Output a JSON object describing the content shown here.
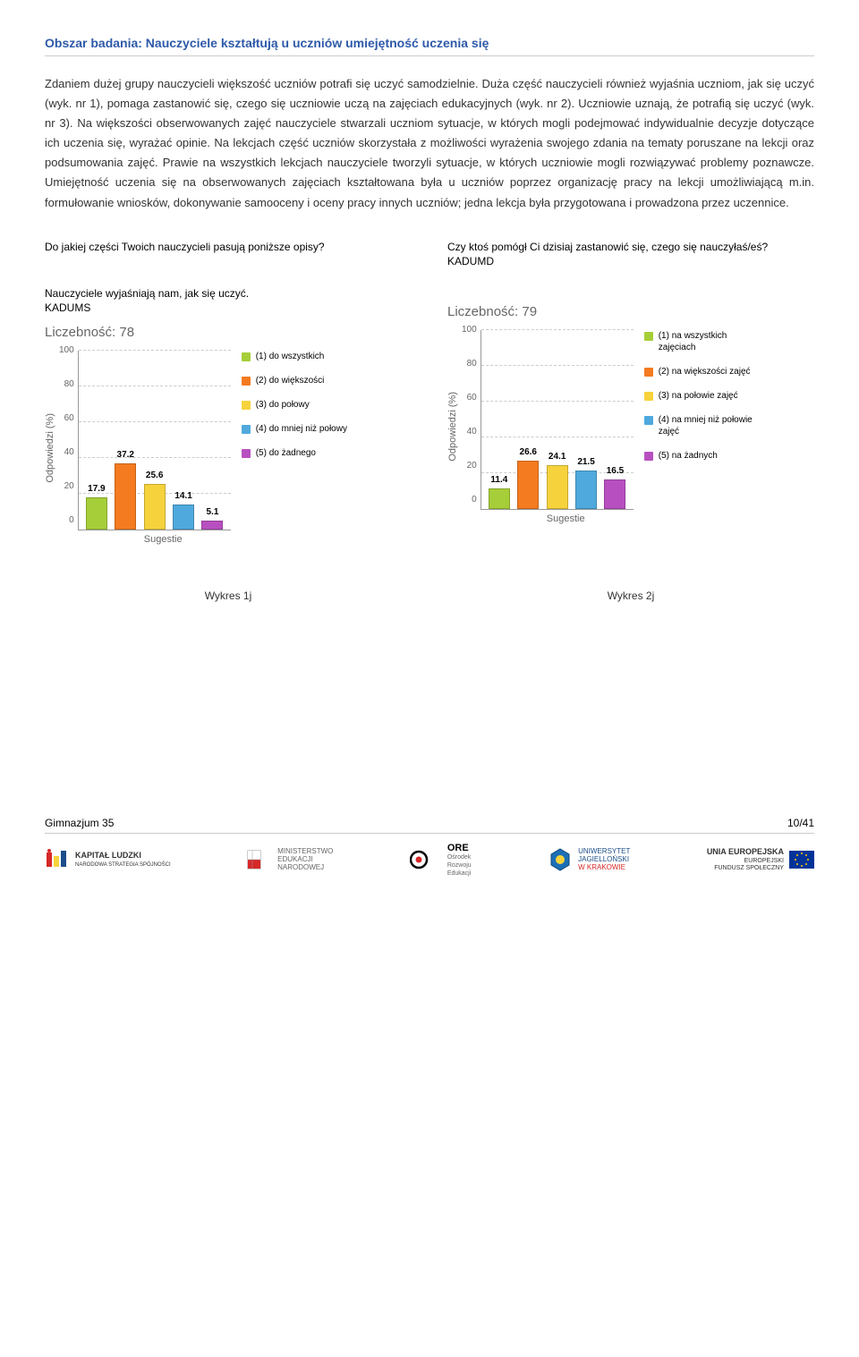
{
  "section_title": "Obszar badania: Nauczyciele kształtują u uczniów umiejętność uczenia się",
  "body_text": "Zdaniem dużej grupy nauczycieli większość uczniów potrafi się uczyć samodzielnie. Duża część nauczycieli również wyjaśnia uczniom, jak się uczyć (wyk. nr 1), pomaga zastanowić się, czego się uczniowie uczą na zajęciach edukacyjnych (wyk. nr 2). Uczniowie uznają, że potrafią się uczyć (wyk. nr 3). Na większości obserwowanych zajęć nauczyciele stwarzali uczniom sytuacje, w których mogli podejmować indywidualnie decyzje dotyczące ich uczenia się, wyrażać opinie. Na lekcjach część uczniów skorzystała z możliwości wyrażenia swojego zdania na tematy poruszane na lekcji oraz podsumowania zajęć. Prawie na wszystkich lekcjach nauczyciele tworzyli sytuacje, w których uczniowie mogli rozwiązywać problemy poznawcze. Umiejętność uczenia się na obserwowanych zajęciach kształtowana była u uczniów poprzez organizację pracy na lekcji umożliwiającą m.in. formułowanie wniosków, dokonywanie samooceny i oceny pracy innych uczniów; jedna lekcja była przygotowana i prowadzona przez uczennice.",
  "palette": [
    "#a6ce39",
    "#f47b20",
    "#f6d33c",
    "#4fa9dd",
    "#b84fc0"
  ],
  "ylim": [
    0,
    100
  ],
  "ytick_step": 20,
  "yticks": [
    "100",
    "80",
    "60",
    "40",
    "20",
    "0"
  ],
  "y_axis_label": "Odpowiedzi (%)",
  "x_axis_label": "Sugestie",
  "chart1": {
    "question": "Do jakiej części Twoich nauczycieli pasują poniższe opisy?",
    "subtitle": "Nauczyciele wyjaśniają nam, jak się uczyć.\nKADUMS",
    "count_label": "Liczebność: 78",
    "values": [
      17.9,
      37.2,
      25.6,
      14.1,
      5.1
    ],
    "legend": [
      "(1) do wszystkich",
      "(2) do większości",
      "(3) do połowy",
      "(4) do mniej niż połowy",
      "(5) do żadnego"
    ],
    "caption": "Wykres 1j"
  },
  "chart2": {
    "question": "Czy ktoś pomógł Ci dzisiaj zastanowić się, czego się nauczyłaś/eś? KADUMD",
    "subtitle": "",
    "count_label": "Liczebność: 79",
    "values": [
      11.4,
      26.6,
      24.1,
      21.5,
      16.5
    ],
    "legend": [
      "(1) na wszystkich zajęciach",
      "(2) na większości zajęć",
      "(3) na połowie zajęć",
      "(4) na mniej niż połowie zajęć",
      "(5) na żadnych"
    ],
    "caption": "Wykres 2j"
  },
  "footer": {
    "left": "Gimnazjum 35",
    "right": "10/41"
  },
  "logos": {
    "kapital": {
      "title": "KAPITAŁ LUDZKI",
      "sub": "NARODOWA STRATEGIA SPÓJNOŚCI"
    },
    "men": {
      "line1": "MINISTERSTWO",
      "line2": "EDUKACJI",
      "line3": "NARODOWEJ"
    },
    "ore": {
      "title": "ORE",
      "sub": "Ośrodek\nRozwoju\nEdukacji"
    },
    "uj": {
      "line1": "UNIWERSYTET",
      "line2": "JAGIELLOŃSKI",
      "line3": "W KRAKOWIE"
    },
    "ue": {
      "line1": "UNIA EUROPEJSKA",
      "line2": "EUROPEJSKI",
      "line3": "FUNDUSZ SPOŁECZNY"
    }
  }
}
